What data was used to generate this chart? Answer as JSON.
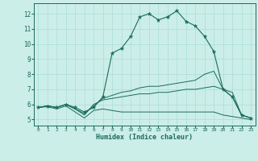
{
  "title": "",
  "xlabel": "Humidex (Indice chaleur)",
  "bg_color": "#cceee8",
  "line_color": "#1a6b5a",
  "grid_color": "#aaddd8",
  "x_ticks": [
    0,
    1,
    2,
    3,
    4,
    5,
    6,
    7,
    8,
    9,
    10,
    11,
    12,
    13,
    14,
    15,
    16,
    17,
    18,
    19,
    20,
    21,
    22,
    23
  ],
  "y_ticks": [
    5,
    6,
    7,
    8,
    9,
    10,
    11,
    12
  ],
  "ylim": [
    4.6,
    12.7
  ],
  "xlim": [
    -0.5,
    23.5
  ],
  "series": {
    "main": [
      5.8,
      5.9,
      5.8,
      6.0,
      5.8,
      5.5,
      5.8,
      6.5,
      9.4,
      9.7,
      10.5,
      11.8,
      12.0,
      11.6,
      11.8,
      12.2,
      11.5,
      11.2,
      10.5,
      9.5,
      7.0,
      6.5,
      5.3,
      5.1
    ],
    "line2": [
      5.8,
      5.9,
      5.8,
      6.0,
      5.7,
      5.4,
      5.9,
      6.4,
      6.6,
      6.8,
      6.9,
      7.1,
      7.2,
      7.2,
      7.3,
      7.4,
      7.5,
      7.6,
      8.0,
      8.2,
      7.0,
      6.8,
      5.3,
      5.1
    ],
    "line3": [
      5.8,
      5.9,
      5.8,
      6.0,
      5.7,
      5.3,
      6.0,
      6.3,
      6.4,
      6.5,
      6.6,
      6.7,
      6.7,
      6.8,
      6.8,
      6.9,
      7.0,
      7.0,
      7.1,
      7.2,
      7.0,
      6.5,
      5.3,
      5.1
    ],
    "line4": [
      5.8,
      5.85,
      5.7,
      5.9,
      5.5,
      5.1,
      5.6,
      5.7,
      5.6,
      5.5,
      5.5,
      5.5,
      5.5,
      5.5,
      5.5,
      5.5,
      5.5,
      5.5,
      5.5,
      5.5,
      5.3,
      5.2,
      5.1,
      5.0
    ]
  }
}
